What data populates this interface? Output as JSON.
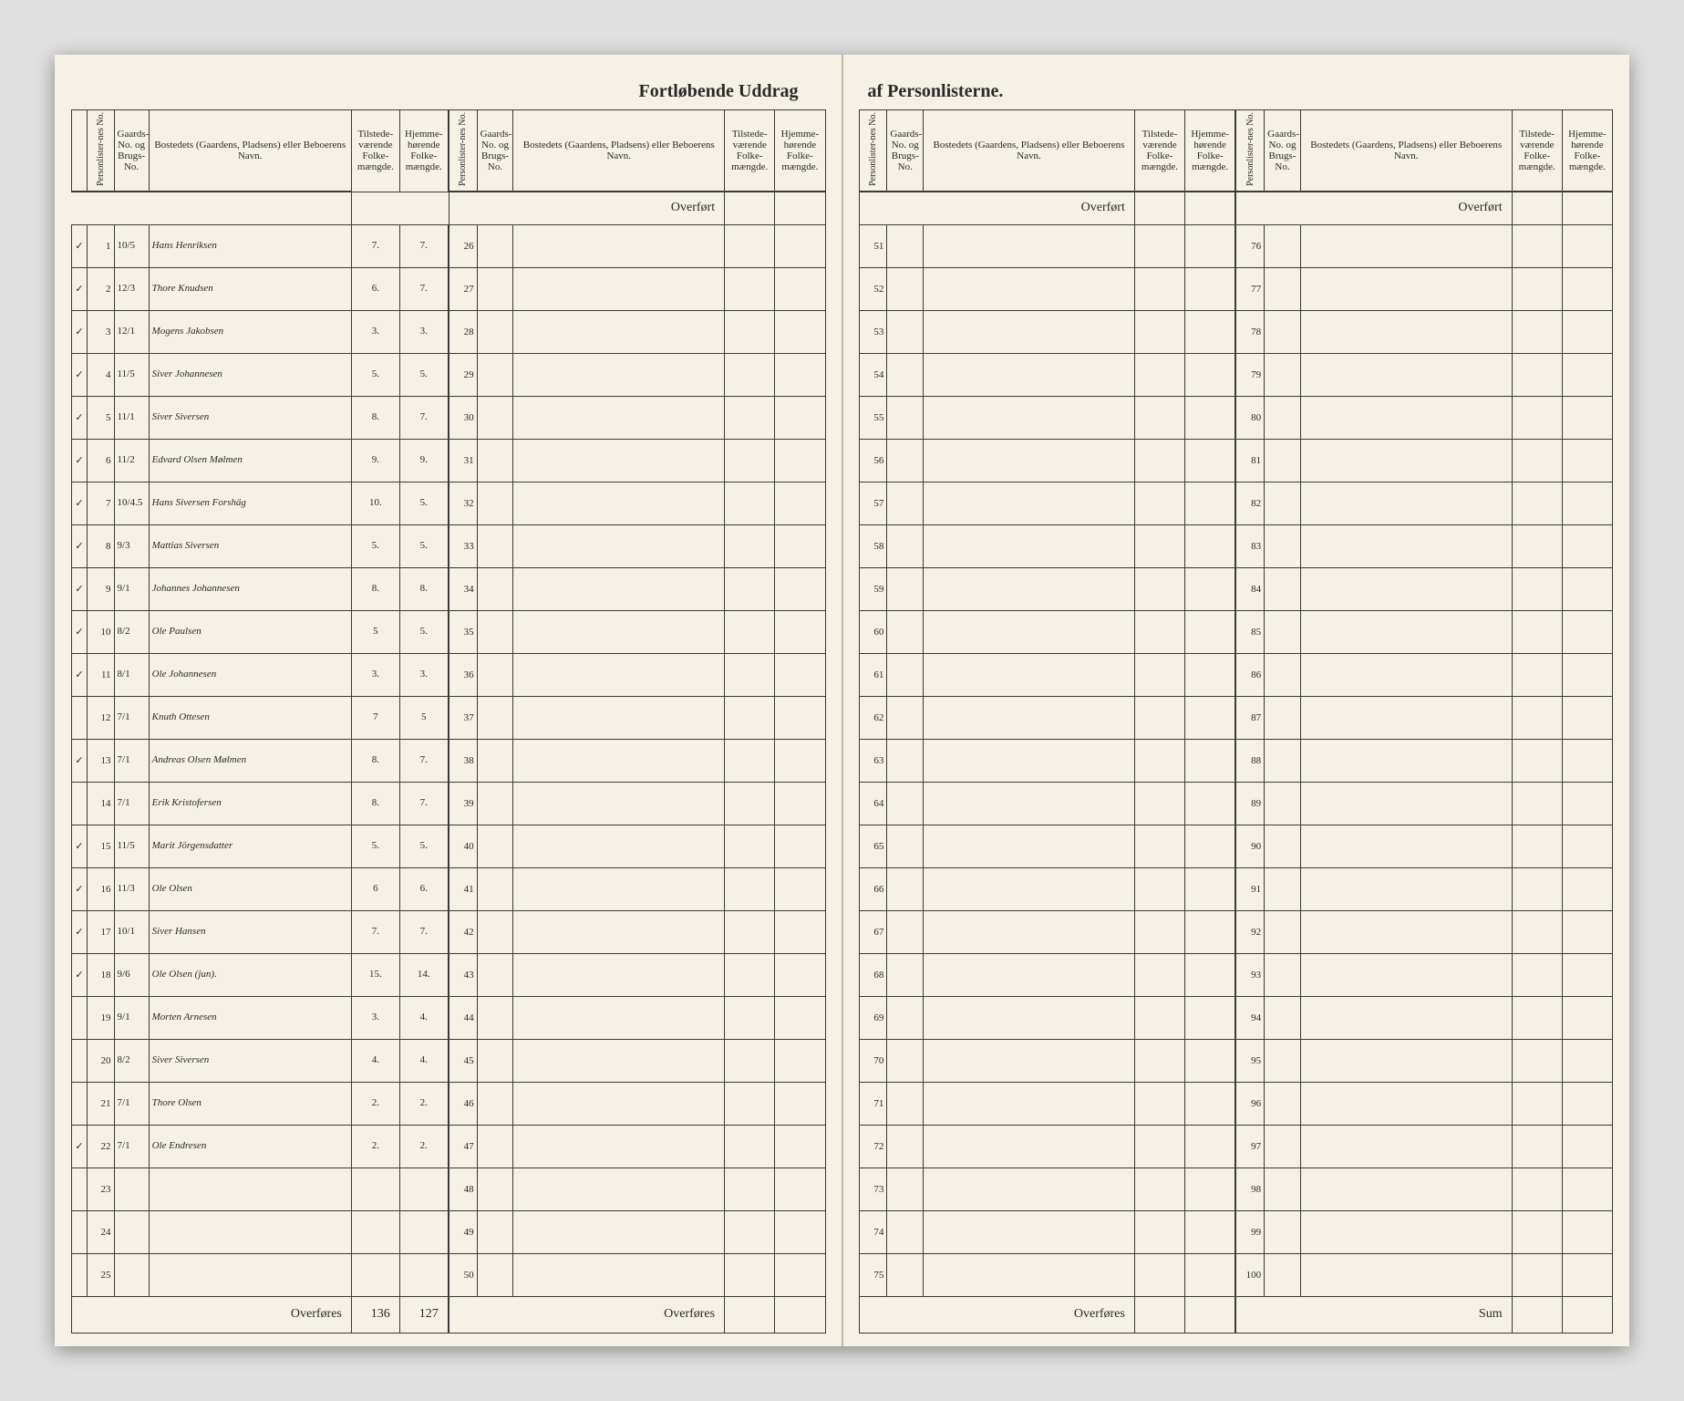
{
  "document": {
    "title_left": "Fortløbende Uddrag",
    "title_right": "af Personlisterne.",
    "background_color": "#f5f1e6",
    "border_color": "#3a3a3a",
    "header_fontsize": 11,
    "body_fontsize": 14,
    "handwriting_fontsize": 22
  },
  "headers": {
    "personlister": "Personlister-nes No.",
    "gaards": "Gaards-No. og Brugs-No.",
    "bosted": "Bostedets (Gaardens, Pladsens) eller Beboerens Navn.",
    "tilstede": "Tilstede-værende Folke-mængde.",
    "hjemme": "Hjemme-hørende Folke-mængde.",
    "overfort": "Overført",
    "overfores": "Overføres",
    "sum": "Sum"
  },
  "left_block1": {
    "rows": [
      {
        "n": 1,
        "chk": "✓",
        "g": "10/5",
        "name": "Hans Henriksen",
        "t": "7.",
        "h": "7."
      },
      {
        "n": 2,
        "chk": "✓",
        "g": "12/3",
        "name": "Thore Knudsen",
        "t": "6.",
        "h": "7."
      },
      {
        "n": 3,
        "chk": "✓",
        "g": "12/1",
        "name": "Mogens Jakobsen",
        "t": "3.",
        "h": "3."
      },
      {
        "n": 4,
        "chk": "✓",
        "g": "11/5",
        "name": "Siver Johannesen",
        "t": "5.",
        "h": "5."
      },
      {
        "n": 5,
        "chk": "✓",
        "g": "11/1",
        "name": "Siver Siversen",
        "t": "8.",
        "h": "7."
      },
      {
        "n": 6,
        "chk": "✓",
        "g": "11/2",
        "name": "Edvard Olsen Mølmen",
        "t": "9.",
        "h": "9."
      },
      {
        "n": 7,
        "chk": "✓",
        "g": "10/4.5",
        "name": "Hans Siversen Forshäg",
        "t": "10.",
        "h": "5."
      },
      {
        "n": 8,
        "chk": "✓",
        "g": "9/3",
        "name": "Mattias Siversen",
        "t": "5.",
        "h": "5."
      },
      {
        "n": 9,
        "chk": "✓",
        "g": "9/1",
        "name": "Johannes Johannesen",
        "t": "8.",
        "h": "8."
      },
      {
        "n": 10,
        "chk": "✓",
        "g": "8/2",
        "name": "Ole Paulsen",
        "t": "5",
        "h": "5."
      },
      {
        "n": 11,
        "chk": "✓",
        "g": "8/1",
        "name": "Ole Johannesen",
        "t": "3.",
        "h": "3."
      },
      {
        "n": 12,
        "chk": "",
        "g": "7/1",
        "name": "Knuth Ottesen",
        "t": "7",
        "h": "5"
      },
      {
        "n": 13,
        "chk": "✓",
        "g": "7/1",
        "name": "Andreas Olsen Mølmen",
        "t": "8.",
        "h": "7."
      },
      {
        "n": 14,
        "chk": "",
        "g": "7/1",
        "name": "Erik Kristofersen",
        "t": "8.",
        "h": "7."
      },
      {
        "n": 15,
        "chk": "✓",
        "g": "11/5",
        "name": "Marit Jörgensdatter",
        "t": "5.",
        "h": "5."
      },
      {
        "n": 16,
        "chk": "✓",
        "g": "11/3",
        "name": "Ole Olsen",
        "t": "6",
        "h": "6."
      },
      {
        "n": 17,
        "chk": "✓",
        "g": "10/1",
        "name": "Siver Hansen",
        "t": "7.",
        "h": "7."
      },
      {
        "n": 18,
        "chk": "✓",
        "g": "9/6",
        "name": "Ole Olsen (jun).",
        "t": "15.",
        "h": "14."
      },
      {
        "n": 19,
        "chk": "",
        "g": "9/1",
        "name": "Morten Arnesen",
        "t": "3.",
        "h": "4."
      },
      {
        "n": 20,
        "chk": "",
        "g": "8/2",
        "name": "Siver Siversen",
        "t": "4.",
        "h": "4."
      },
      {
        "n": 21,
        "chk": "",
        "g": "7/1",
        "name": "Thore Olsen",
        "t": "2.",
        "h": "2."
      },
      {
        "n": 22,
        "chk": "✓",
        "g": "7/1",
        "name": "Ole Endresen",
        "t": "2.",
        "h": "2."
      },
      {
        "n": 23,
        "chk": "",
        "g": "",
        "name": "",
        "t": "",
        "h": ""
      },
      {
        "n": 24,
        "chk": "",
        "g": "",
        "name": "",
        "t": "",
        "h": ""
      },
      {
        "n": 25,
        "chk": "",
        "g": "",
        "name": "",
        "t": "",
        "h": ""
      }
    ],
    "sum_t": "136",
    "sum_h": "127"
  },
  "left_block2_start": 26,
  "right_block1_start": 51,
  "right_block2_start": 76
}
